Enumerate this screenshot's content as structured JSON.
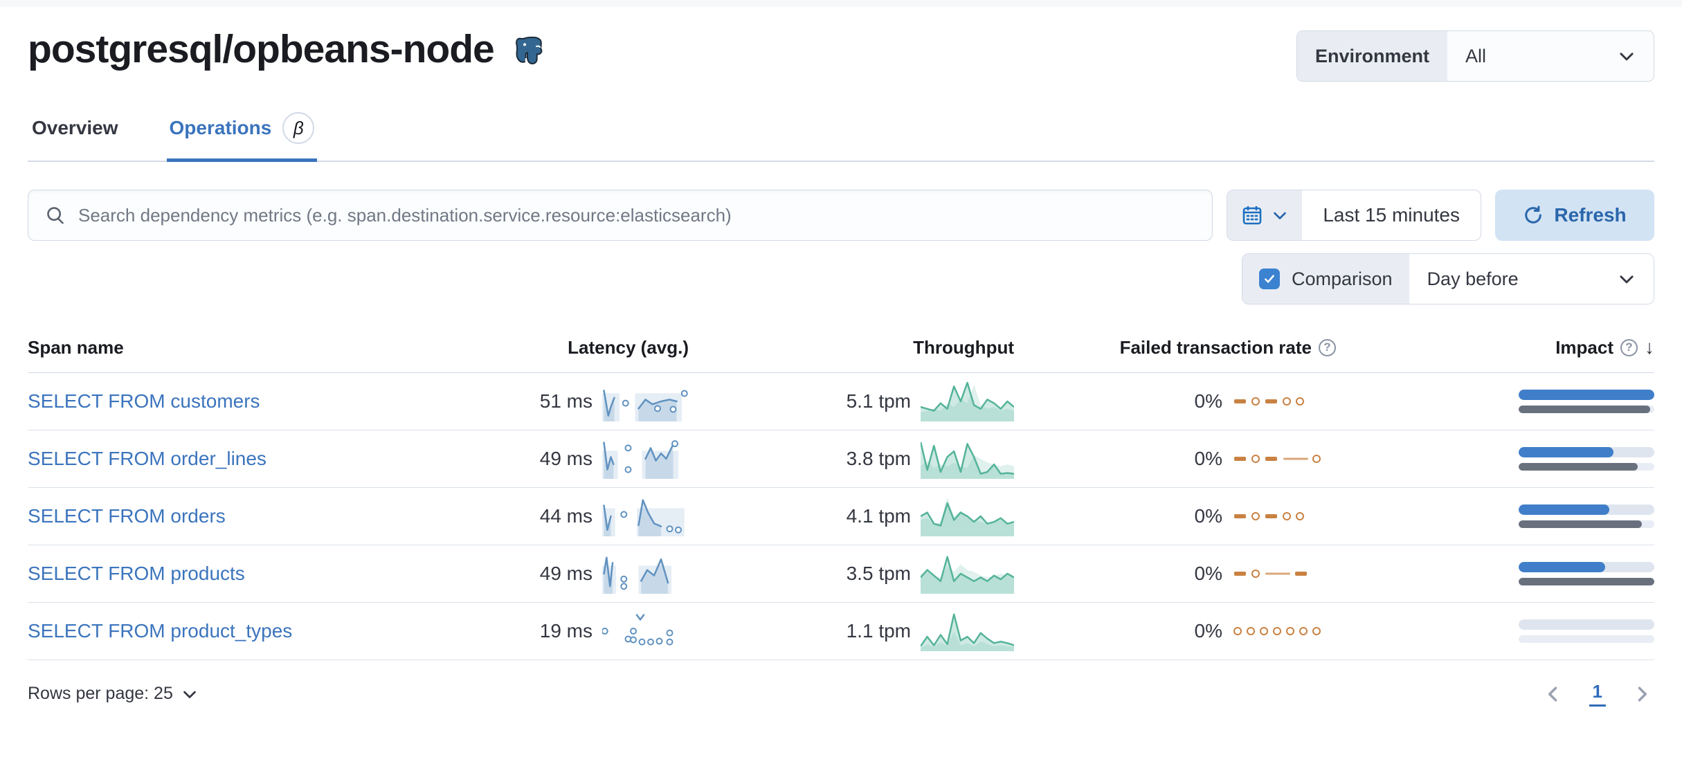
{
  "page_title": "postgresql/opbeans-node",
  "environment": {
    "label": "Environment",
    "value": "All"
  },
  "tabs": {
    "overview": "Overview",
    "operations": "Operations",
    "beta_badge": "β"
  },
  "search": {
    "placeholder": "Search dependency metrics (e.g. span.destination.service.resource:elasticsearch)"
  },
  "time_picker": {
    "value": "Last 15 minutes"
  },
  "refresh": {
    "label": "Refresh"
  },
  "comparison": {
    "label": "Comparison",
    "checked": true,
    "value": "Day before"
  },
  "table": {
    "columns": {
      "span_name": "Span name",
      "latency": "Latency (avg.)",
      "throughput": "Throughput",
      "failed_rate": "Failed transaction rate",
      "impact": "Impact"
    },
    "rows": [
      {
        "span_name": "SELECT FROM customers",
        "latency": "51 ms",
        "throughput": "5.1 tpm",
        "failed_rate": "0%",
        "impact_pct": 100,
        "impact_prev_pct": 97,
        "latency_spark": {
          "bg": [
            [
              0,
              0.2
            ],
            [
              0.38,
              0.92
            ]
          ],
          "segments": [
            [
              [
                0.02,
                0.8
              ],
              [
                0.07,
                0.1
              ],
              [
                0.1,
                0.35
              ],
              [
                0.14,
                0.6
              ]
            ],
            [
              [
                0.42,
                0.3
              ],
              [
                0.5,
                0.55
              ],
              [
                0.58,
                0.42
              ],
              [
                0.68,
                0.5
              ],
              [
                0.78,
                0.55
              ],
              [
                0.86,
                0.5
              ]
            ]
          ],
          "dots": [
            [
              0.27,
              0.45
            ],
            [
              0.64,
              0.3
            ],
            [
              0.82,
              0.28
            ],
            [
              0.95,
              0.72
            ]
          ]
        },
        "throughput_spark": {
          "values": [
            0.35,
            0.3,
            0.25,
            0.45,
            0.3,
            0.9,
            0.5,
            1.0,
            0.4,
            0.3,
            0.55,
            0.45,
            0.3,
            0.5,
            0.35
          ],
          "prev": [
            0.2,
            0.25,
            0.3,
            0.25,
            0.45,
            0.35,
            0.55,
            0.45,
            0.95,
            0.4,
            0.3,
            0.35,
            0.25,
            0.3,
            0.25
          ]
        },
        "failed_spark": [
          "dash",
          "circle",
          "dash",
          "circle",
          "circle"
        ]
      },
      {
        "span_name": "SELECT FROM order_lines",
        "latency": "49 ms",
        "throughput": "3.8 tpm",
        "failed_rate": "0%",
        "impact_pct": 70,
        "impact_prev_pct": 88,
        "latency_spark": {
          "bg": [
            [
              0,
              0.18
            ],
            [
              0.46,
              0.88
            ]
          ],
          "segments": [
            [
              [
                0.02,
                0.95
              ],
              [
                0.06,
                0.2
              ],
              [
                0.1,
                0.55
              ],
              [
                0.13,
                0.35
              ]
            ],
            [
              [
                0.5,
                0.5
              ],
              [
                0.56,
                0.8
              ],
              [
                0.62,
                0.45
              ],
              [
                0.68,
                0.65
              ],
              [
                0.74,
                0.5
              ],
              [
                0.82,
                0.9
              ]
            ]
          ],
          "dots": [
            [
              0.3,
              0.8
            ],
            [
              0.3,
              0.2
            ],
            [
              0.84,
              0.92
            ]
          ]
        },
        "throughput_spark": {
          "values": [
            0.95,
            0.2,
            0.85,
            0.15,
            0.55,
            0.7,
            0.15,
            0.9,
            0.55,
            0.1,
            0.15,
            0.35,
            0.1,
            0.12,
            0.1
          ],
          "prev": [
            0.3,
            0.45,
            0.25,
            0.35,
            0.3,
            0.4,
            0.3,
            0.25,
            0.6,
            0.5,
            0.4,
            0.35,
            0.3,
            0.35,
            0.3
          ]
        },
        "failed_spark": [
          "dash",
          "circle",
          "dash",
          "line",
          "circle"
        ]
      },
      {
        "span_name": "SELECT FROM orders",
        "latency": "44 ms",
        "throughput": "4.1 tpm",
        "failed_rate": "0%",
        "impact_pct": 67,
        "impact_prev_pct": 91,
        "latency_spark": {
          "bg": [
            [
              0,
              0.15
            ],
            [
              0.4,
              0.95
            ]
          ],
          "segments": [
            [
              [
                0.02,
                0.8
              ],
              [
                0.06,
                0.12
              ],
              [
                0.1,
                0.5
              ]
            ],
            [
              [
                0.42,
                0.25
              ],
              [
                0.47,
                0.95
              ],
              [
                0.53,
                0.6
              ],
              [
                0.6,
                0.3
              ],
              [
                0.68,
                0.22
              ]
            ]
          ],
          "dots": [
            [
              0.25,
              0.55
            ],
            [
              0.78,
              0.15
            ],
            [
              0.88,
              0.12
            ]
          ]
        },
        "throughput_spark": {
          "values": [
            0.5,
            0.6,
            0.3,
            0.25,
            0.85,
            0.4,
            0.6,
            0.5,
            0.35,
            0.5,
            0.3,
            0.35,
            0.45,
            0.3,
            0.35
          ],
          "prev": [
            0.4,
            0.45,
            0.3,
            0.35,
            1.0,
            0.5,
            0.65,
            0.45,
            0.4,
            0.35,
            0.3,
            0.35,
            0.4,
            0.3,
            0.3
          ]
        },
        "failed_spark": [
          "dash",
          "circle",
          "dash",
          "circle",
          "circle"
        ]
      },
      {
        "span_name": "SELECT FROM products",
        "latency": "49 ms",
        "throughput": "3.5 tpm",
        "failed_rate": "0%",
        "impact_pct": 64,
        "impact_prev_pct": 100,
        "latency_spark": {
          "bg": [
            [
              0,
              0.16
            ],
            [
              0.42,
              0.8
            ]
          ],
          "segments": [
            [
              [
                0.02,
                0.5
              ],
              [
                0.05,
                0.95
              ],
              [
                0.09,
                0.15
              ],
              [
                0.12,
                0.8
              ]
            ],
            [
              [
                0.45,
                0.3
              ],
              [
                0.52,
                0.6
              ],
              [
                0.6,
                0.45
              ],
              [
                0.68,
                0.9
              ],
              [
                0.76,
                0.25
              ]
            ]
          ],
          "dots": [
            [
              0.25,
              0.35
            ],
            [
              0.25,
              0.15
            ]
          ]
        },
        "throughput_spark": {
          "values": [
            0.4,
            0.6,
            0.45,
            0.3,
            0.95,
            0.3,
            0.5,
            0.4,
            0.3,
            0.4,
            0.3,
            0.45,
            0.35,
            0.5,
            0.4
          ],
          "prev": [
            0.5,
            0.55,
            0.45,
            0.4,
            0.7,
            0.55,
            0.75,
            0.6,
            0.55,
            0.45,
            0.4,
            0.45,
            0.5,
            0.45,
            0.4
          ]
        },
        "failed_spark": [
          "dash",
          "circle",
          "line",
          "dash"
        ]
      },
      {
        "span_name": "SELECT FROM product_types",
        "latency": "19 ms",
        "throughput": "1.1 tpm",
        "failed_rate": "0%",
        "impact_pct": 0,
        "impact_prev_pct": 0,
        "latency_spark": {
          "fill": false,
          "bg": [],
          "segments": [
            [
              [
                0.4,
                0.95
              ],
              [
                0.44,
                0.82
              ],
              [
                0.48,
                0.95
              ]
            ]
          ],
          "dots": [
            [
              0.03,
              0.5
            ],
            [
              0.3,
              0.28
            ],
            [
              0.36,
              0.5
            ],
            [
              0.36,
              0.26
            ],
            [
              0.46,
              0.2
            ],
            [
              0.56,
              0.2
            ],
            [
              0.66,
              0.22
            ],
            [
              0.78,
              0.45
            ],
            [
              0.78,
              0.2
            ]
          ]
        },
        "throughput_spark": {
          "values": [
            0.1,
            0.35,
            0.12,
            0.4,
            0.15,
            0.95,
            0.25,
            0.35,
            0.18,
            0.45,
            0.3,
            0.18,
            0.22,
            0.18,
            0.12
          ],
          "prev": [
            0.05,
            0.15,
            0.08,
            0.2,
            0.1,
            0.5,
            0.12,
            0.18,
            0.1,
            0.22,
            0.15,
            0.1,
            0.12,
            0.1,
            0.08
          ]
        },
        "failed_spark": [
          "circle",
          "circle",
          "circle",
          "circle",
          "circle",
          "circle",
          "circle"
        ]
      }
    ]
  },
  "footer": {
    "rows_per_page": "Rows per page: 25",
    "page": "1"
  },
  "colors": {
    "link_blue": "#3b74bd",
    "latency_blue": "#6092c0",
    "throughput_green": "#54b399",
    "failed_orange": "#c98142",
    "impact_blue": "#407ec9",
    "impact_gray": "#69707d"
  }
}
